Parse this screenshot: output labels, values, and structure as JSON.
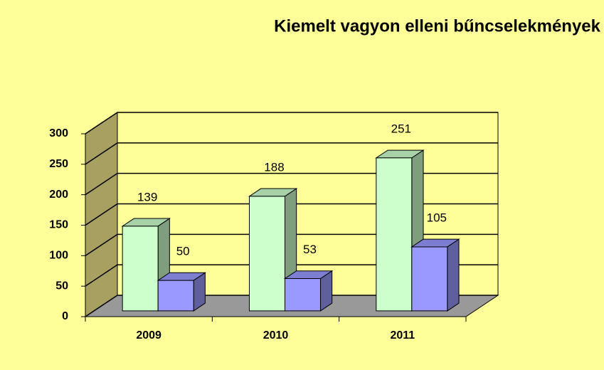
{
  "chart_data": {
    "type": "bar3d",
    "title": "Kiemelt vagyon elleni bűncselekmények",
    "categories": [
      "2009",
      "2010",
      "2011"
    ],
    "series": [
      {
        "color": "#ccffcc",
        "values": [
          139,
          188,
          251
        ]
      },
      {
        "color": "#9999ff",
        "values": [
          50,
          53,
          105
        ]
      }
    ],
    "ylim": [
      0,
      300
    ],
    "yticks": [
      0,
      50,
      100,
      150,
      200,
      250,
      300
    ],
    "grid": true
  }
}
